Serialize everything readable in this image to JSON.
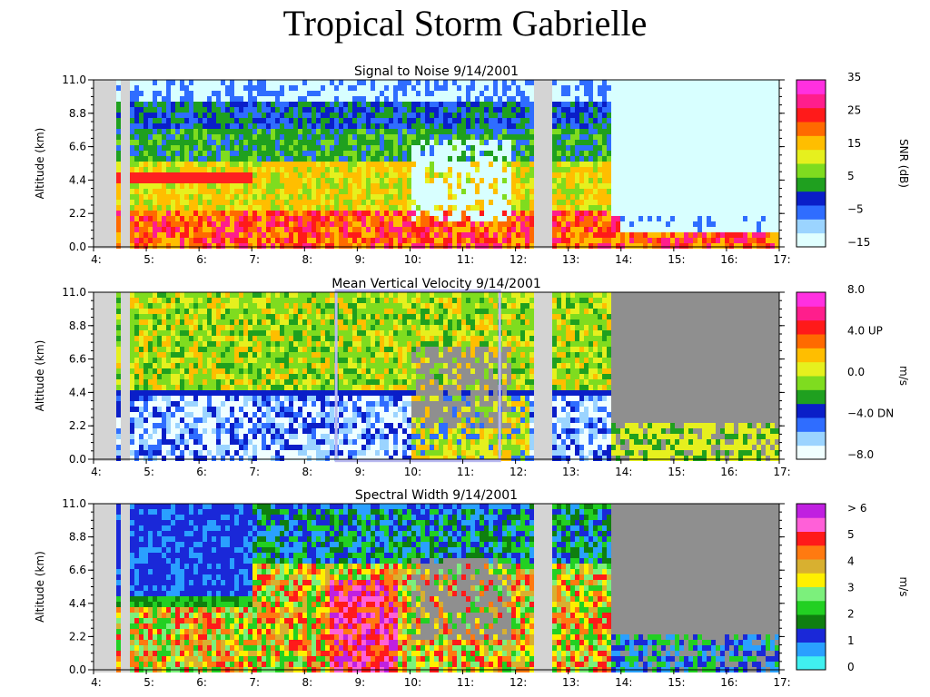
{
  "page": {
    "title": "Tropical Storm Gabrielle"
  },
  "chart_data": [
    {
      "type": "heatmap",
      "title": "Signal to Noise  9/14/2001",
      "ylabel": "Altitude (km)",
      "xlabel": "",
      "x_ticks": [
        "4:",
        "5:",
        "6:",
        "7:",
        "8:",
        "9:",
        "10:",
        "11:",
        "12:",
        "13:",
        "14:",
        "15:",
        "16:",
        "17:"
      ],
      "x_range": [
        4.0,
        17.0
      ],
      "y_ticks": [
        "11.0",
        "8.8",
        "6.6",
        "4.4",
        "2.2",
        "0.0"
      ],
      "y_range": [
        0.0,
        11.0
      ],
      "colorbar": {
        "label": "SNR (dB)",
        "ticks": [
          "35",
          "25",
          "15",
          "5",
          "−5",
          "−15"
        ],
        "range": [
          -15,
          35
        ],
        "colors": [
          "#e0ffff",
          "#9bd4ff",
          "#2f6dff",
          "#0a1ec8",
          "#1fa01f",
          "#7fdc1f",
          "#e6f01e",
          "#ffbe00",
          "#ff6a00",
          "#ff1a1a",
          "#ff1e8c",
          "#ff30e0"
        ]
      }
    },
    {
      "type": "heatmap",
      "title": "Mean Vertical Velocity  9/14/2001",
      "ylabel": "Altitude (km)",
      "xlabel": "",
      "x_ticks": [
        "4:",
        "5:",
        "6:",
        "7:",
        "8:",
        "9:",
        "10:",
        "11:",
        "12:",
        "13:",
        "14:",
        "15:",
        "16:",
        "17:"
      ],
      "x_range": [
        4.0,
        17.0
      ],
      "y_ticks": [
        "11.0",
        "8.8",
        "6.6",
        "4.4",
        "2.2",
        "0.0"
      ],
      "y_range": [
        0.0,
        11.0
      ],
      "highlight_box": {
        "x": [
          8.6,
          11.7
        ],
        "y": [
          -0.1,
          11.1
        ]
      },
      "colorbar": {
        "label": "m/s",
        "ticks": [
          "8.0",
          "4.0  UP",
          "0.0",
          "−4.0  DN",
          "−8.0"
        ],
        "range": [
          -8,
          8
        ],
        "colors": [
          "#f0ffff",
          "#9bd4ff",
          "#2f6dff",
          "#0a1ec8",
          "#1fa01f",
          "#7fdc1f",
          "#e6f01e",
          "#ffbe00",
          "#ff6a00",
          "#ff1a1a",
          "#ff1e8c",
          "#ff30e0"
        ]
      }
    },
    {
      "type": "heatmap",
      "title": "Spectral Width  9/14/2001",
      "ylabel": "Altitude (km)",
      "xlabel": "",
      "x_ticks": [
        "4:",
        "5:",
        "6:",
        "7:",
        "8:",
        "9:",
        "10:",
        "11:",
        "12:",
        "13:",
        "14:",
        "15:",
        "16:",
        "17:"
      ],
      "x_range": [
        4.0,
        17.0
      ],
      "y_ticks": [
        "11.0",
        "8.8",
        "6.6",
        "4.4",
        "2.2",
        "0.0"
      ],
      "y_range": [
        0.0,
        11.0
      ],
      "colorbar": {
        "label": "m/s",
        "ticks": [
          "> 6",
          "5",
          "4",
          "3",
          "2",
          "1",
          "0"
        ],
        "range": [
          0,
          6.5
        ],
        "colors": [
          "#40f0f0",
          "#2aa0ff",
          "#1a28d8",
          "#0f7f0f",
          "#22d022",
          "#7cf07c",
          "#fff000",
          "#d8b030",
          "#ff7a10",
          "#ff1a1a",
          "#ff60d8",
          "#c020e0"
        ]
      }
    }
  ]
}
